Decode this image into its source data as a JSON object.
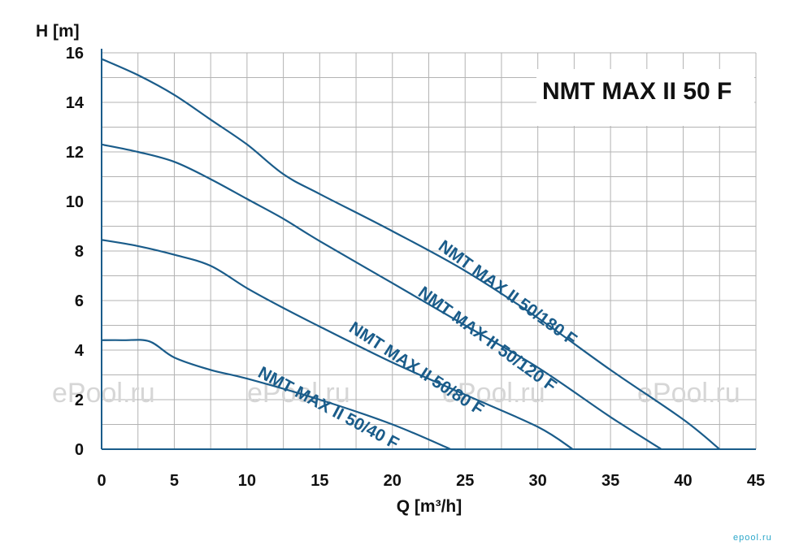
{
  "chart_data": {
    "type": "line",
    "title": "NMT MAX II 50 F",
    "xlabel": "Q [m³/h]",
    "ylabel": "H [m]",
    "xlim": [
      0,
      45
    ],
    "ylim": [
      0,
      16
    ],
    "xticks": [
      "0",
      "5",
      "10",
      "15",
      "20",
      "25",
      "30",
      "35",
      "40",
      "45"
    ],
    "yticks": [
      "0",
      "2",
      "4",
      "6",
      "8",
      "10",
      "12",
      "14",
      "16"
    ],
    "grid": true,
    "series": [
      {
        "name": "NMT  MAX II 50/180 F",
        "x": [
          0,
          2.5,
          5,
          7.5,
          10,
          12.5,
          15,
          20,
          25,
          30,
          35,
          40,
          42.5
        ],
        "y": [
          15.75,
          15.1,
          14.3,
          13.3,
          12.3,
          11.1,
          10.3,
          8.8,
          7.2,
          5.3,
          3.2,
          1.2,
          0
        ]
      },
      {
        "name": "NMT  MAX II 50/120 F",
        "x": [
          0,
          2.5,
          5,
          7.5,
          10,
          12.5,
          15,
          20,
          25,
          30,
          35,
          38.5
        ],
        "y": [
          12.3,
          12.0,
          11.6,
          10.9,
          10.1,
          9.3,
          8.4,
          6.7,
          5.0,
          3.3,
          1.3,
          0
        ]
      },
      {
        "name": "NMT  MAX II 50/80 F",
        "x": [
          0,
          2.5,
          5,
          7.5,
          10,
          12.5,
          15,
          20,
          25,
          30,
          32.4
        ],
        "y": [
          8.45,
          8.2,
          7.85,
          7.4,
          6.5,
          5.7,
          4.95,
          3.5,
          2.2,
          0.9,
          0
        ]
      },
      {
        "name": "NMT  MAX II 50/40 F",
        "x": [
          0,
          1.5,
          3.3,
          5,
          7.5,
          10,
          15,
          20,
          24
        ],
        "y": [
          4.4,
          4.4,
          4.35,
          3.7,
          3.2,
          2.85,
          2.0,
          1.0,
          0
        ]
      }
    ]
  },
  "watermark": "ePool.ru",
  "brand": "epool.ru",
  "colors": {
    "curve": "#1a5c8a",
    "grid": "#b3b3b3",
    "axis": "#1a5c8a",
    "watermark": "#d6d6d6"
  }
}
